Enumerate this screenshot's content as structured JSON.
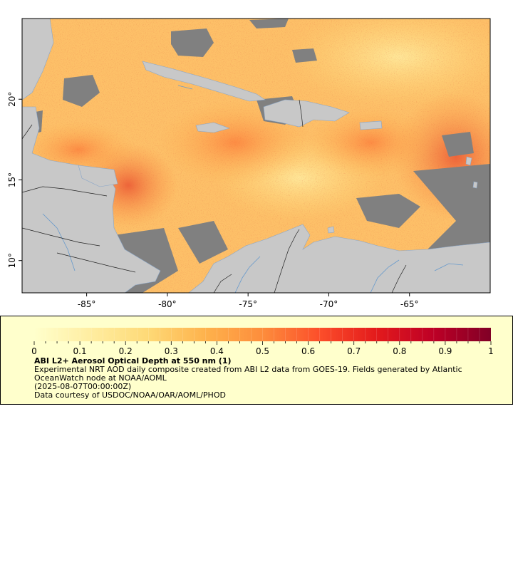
{
  "map": {
    "x_ticks": [
      -85,
      -80,
      -75,
      -70,
      -65
    ],
    "y_ticks": [
      10,
      15,
      20
    ],
    "lon_range": [
      -89,
      -60
    ],
    "lat_range": [
      8,
      25
    ],
    "land_color": "#c8c8c8",
    "nodata_color": "#808080",
    "border_color": "#000000",
    "river_color": "#6699cc"
  },
  "x_tick_labels": [
    "-85°",
    "-80°",
    "-75°",
    "-70°",
    "-65°"
  ],
  "y_tick_labels": [
    "10°",
    "15°",
    "20°"
  ],
  "legend": {
    "colorbar_ticks": [
      "0",
      "0.1",
      "0.2",
      "0.3",
      "0.4",
      "0.5",
      "0.6",
      "0.7",
      "0.8",
      "0.9",
      "1"
    ],
    "colorbar_range": [
      0,
      1
    ],
    "colorbar_colors": [
      "#ffffcc",
      "#ffeda0",
      "#fed976",
      "#feb24c",
      "#fd8d3c",
      "#fc4e2a",
      "#e31a1c",
      "#bd0026",
      "#800026"
    ],
    "title": "ABI L2+ Aerosol Optical Depth at 550 nm (1)",
    "line1": "Experimental NRT AOD daily composite created from ABI L2 data from GOES-19. Fields generated by Atlantic OceanWatch node at NOAA/AOML",
    "line2": "(2025-08-07T00:00:00Z)",
    "line3": "Data courtesy of USDOC/NOAA/OAR/AOML/PHOD"
  }
}
